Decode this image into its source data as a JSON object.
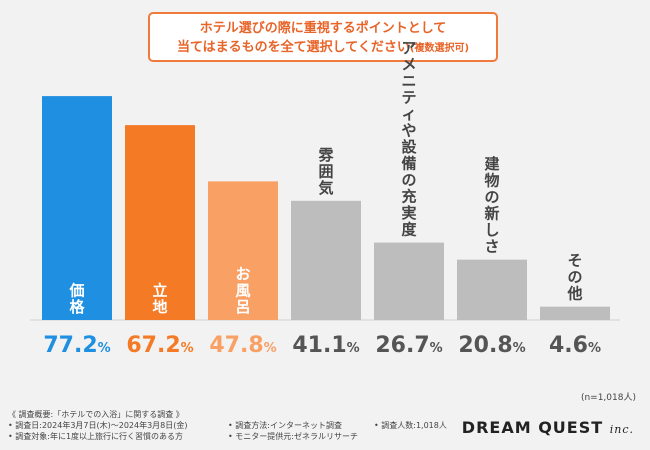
{
  "title": {
    "line1": "ホテル選びの際に重視するポイントとして",
    "line2": "当てはまるものを全て選択してください",
    "note": "(複数選択可)"
  },
  "chart_data": {
    "type": "bar",
    "categories": [
      "価格",
      "立地",
      "お風呂",
      "雰囲気",
      "アメニティや設備の充実度",
      "建物の新しさ",
      "その他"
    ],
    "values": [
      77.2,
      67.2,
      47.8,
      41.1,
      26.7,
      20.8,
      4.6
    ],
    "value_labels": [
      "77.2%",
      "67.2%",
      "47.8%",
      "41.1%",
      "26.7%",
      "20.8%",
      "4.6%"
    ],
    "colors": [
      "#1e8fe1",
      "#f57a25",
      "#f9a065",
      "#bdbdbd",
      "#bdbdbd",
      "#bdbdbd",
      "#bdbdbd"
    ],
    "label_colors": [
      "#1e8fe1",
      "#f57a25",
      "#f9a065",
      "#555555",
      "#555555",
      "#555555",
      "#555555"
    ],
    "ylim": [
      0,
      100
    ],
    "grid": false,
    "legend": "none"
  },
  "sample_note": "(n=1,018人)",
  "footer": {
    "heading": "《 調査概要:「ホテルでの入浴」に関する調査 》",
    "col1": [
      "• 調査日:2024年3月7日(木)〜2024年3月8日(金)",
      "• 調査対象:年に1度以上旅行に行く習慣のある方"
    ],
    "col2": [
      "• 調査方法:インターネット調査",
      "• モニター提供元:ゼネラルリサーチ"
    ],
    "col3": [
      "• 調査人数:1,018人"
    ]
  },
  "logo": {
    "main": "DREAM QUEST",
    "suffix": "inc."
  }
}
